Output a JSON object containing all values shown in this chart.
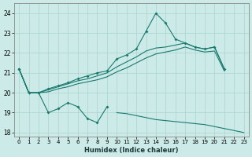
{
  "xlabel": "Humidex (Indice chaleur)",
  "bg_color": "#cceae7",
  "grid_color": "#aad4d0",
  "line_color": "#1a7a6e",
  "x": [
    0,
    1,
    2,
    3,
    4,
    5,
    6,
    7,
    8,
    9,
    10,
    11,
    12,
    13,
    14,
    15,
    16,
    17,
    18,
    19,
    20,
    21,
    22,
    23
  ],
  "series": {
    "jagged": [
      21.2,
      20.0,
      20.0,
      19.0,
      19.2,
      19.5,
      19.3,
      18.7,
      18.5,
      19.3,
      null,
      null,
      null,
      null,
      null,
      null,
      null,
      null,
      null,
      null,
      null,
      null,
      null,
      null
    ],
    "peaked": [
      21.2,
      20.0,
      20.0,
      20.2,
      20.35,
      20.5,
      20.7,
      20.85,
      21.0,
      21.1,
      21.7,
      21.9,
      22.2,
      23.1,
      24.0,
      23.5,
      22.7,
      22.5,
      22.3,
      22.2,
      22.3,
      21.2,
      null,
      null
    ],
    "smooth_upper": [
      21.2,
      20.0,
      20.0,
      20.15,
      20.3,
      20.45,
      20.6,
      20.7,
      20.85,
      21.0,
      21.3,
      21.55,
      21.8,
      22.1,
      22.25,
      22.3,
      22.4,
      22.5,
      22.3,
      22.2,
      22.3,
      21.2,
      null,
      null
    ],
    "smooth_lower": [
      21.2,
      20.0,
      20.0,
      20.05,
      20.2,
      20.3,
      20.45,
      20.55,
      20.65,
      20.8,
      21.05,
      21.25,
      21.5,
      21.75,
      21.95,
      22.05,
      22.15,
      22.3,
      22.15,
      22.05,
      22.1,
      21.1,
      null,
      null
    ],
    "flat_lower": [
      null,
      null,
      null,
      null,
      null,
      null,
      null,
      null,
      null,
      null,
      19.0,
      18.95,
      18.85,
      18.75,
      18.65,
      18.6,
      18.55,
      18.5,
      18.45,
      18.4,
      18.3,
      18.2,
      18.1,
      18.0
    ]
  },
  "ylim": [
    17.8,
    24.5
  ],
  "yticks": [
    18,
    19,
    20,
    21,
    22,
    23,
    24
  ],
  "xticks": [
    0,
    1,
    2,
    3,
    4,
    5,
    6,
    7,
    8,
    9,
    10,
    11,
    12,
    13,
    14,
    15,
    16,
    17,
    18,
    19,
    20,
    21,
    22,
    23
  ]
}
